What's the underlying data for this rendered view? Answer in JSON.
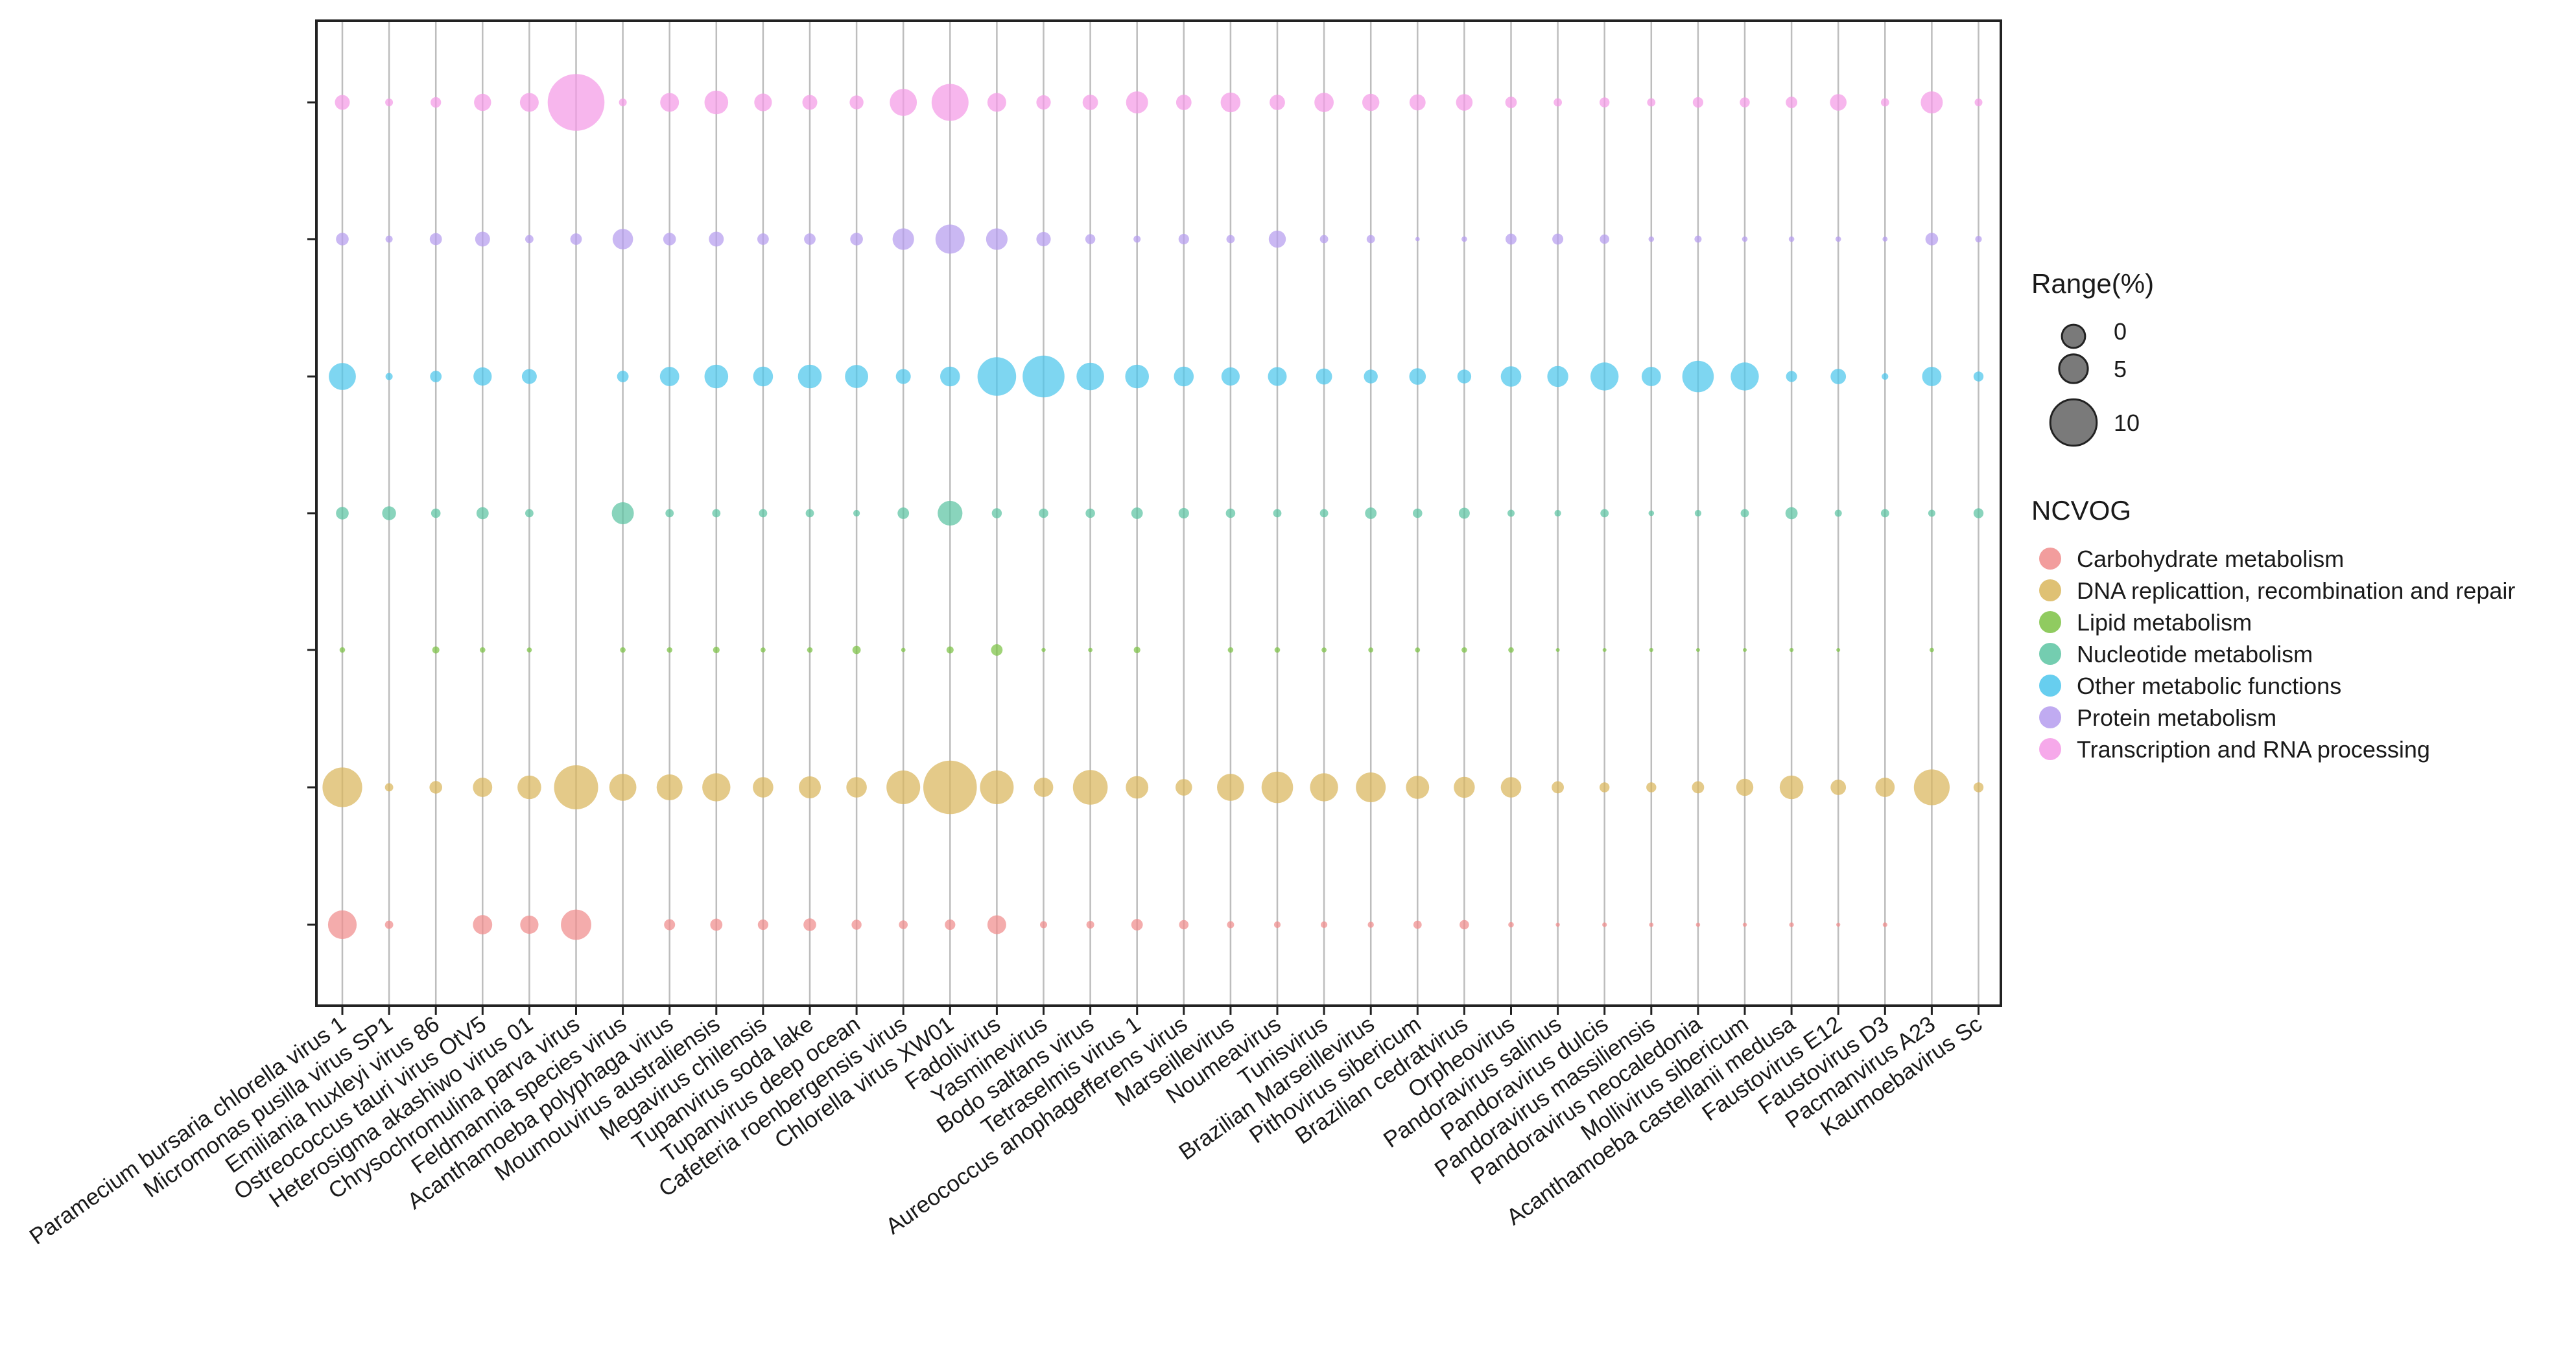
{
  "chart_data": {
    "type": "scatter",
    "x_categories": [
      "Paramecium bursaria chlorella virus 1",
      "Micromonas pusilla virus SP1",
      "Emiliania huxleyi virus 86",
      "Ostreococcus tauri virus OtV5",
      "Heterosigma akashiwo virus 01",
      "Chrysochromulina parva virus",
      "Feldmannia species virus",
      "Acanthamoeba polyphaga virus",
      "Moumouvirus australiensis",
      "Megavirus chilensis",
      "Tupanvirus soda lake",
      "Tupanvirus deep ocean",
      "Cafeteria roenbergensis virus",
      "Chlorella virus XW01",
      "Fadolivirus",
      "Yasminevirus",
      "Bodo saltans virus",
      "Tetraselmis virus 1",
      "Aureococcus anophagefferens virus",
      "Marseillevirus",
      "Noumeavirus",
      "Tunisvirus",
      "Brazilian Marseillevirus",
      "Pithovirus sibericum",
      "Brazilian cedratvirus",
      "Orpheovirus",
      "Pandoravirus salinus",
      "Pandoravirus dulcis",
      "Pandoravirus massiliensis",
      "Pandoravirus neocaledonia",
      "Mollivirus sibericum",
      "Acanthamoeba castellanii medusa",
      "Faustovirus E12",
      "Faustovirus D3",
      "Pacmanvirus A23",
      "Kaumoebavirus Sc"
    ],
    "y_categories": [
      "Carbohydrate metabolism",
      "DNA replicattion, recombination and repair",
      "Lipid metabolism",
      "Nucleotide metabolism",
      "Other metabolic functions",
      "Protein metabolism",
      "Transcription and RNA processing"
    ],
    "series": [
      {
        "name": "Carbohydrate metabolism",
        "color": "#F08C8C",
        "values": [
          4.5,
          0.8,
          null,
          2.8,
          2.6,
          4.8,
          null,
          1.3,
          1.5,
          1.2,
          1.6,
          1.1,
          0.9,
          1.2,
          2.7,
          0.6,
          0.7,
          1.4,
          1.0,
          0.6,
          0.5,
          0.5,
          0.4,
          0.8,
          1.0,
          0.3,
          0.04,
          0.15,
          0.1,
          0.06,
          0.04,
          0.15,
          0.03,
          0.15,
          null,
          null
        ]
      },
      {
        "name": "DNA replicattion, recombination and repair",
        "color": "#D9B65C",
        "values": [
          6.5,
          0.8,
          1.6,
          2.8,
          3.6,
          7.3,
          4.2,
          4.0,
          4.4,
          3.0,
          3.3,
          3.0,
          5.4,
          9.0,
          5.4,
          2.8,
          5.6,
          3.4,
          2.3,
          4.2,
          5.0,
          4.4,
          4.7,
          3.5,
          3.1,
          3.0,
          1.5,
          1.1,
          1.1,
          1.5,
          2.4,
          3.6,
          2.1,
          2.8,
          5.8,
          1.1
        ]
      },
      {
        "name": "Lipid metabolism",
        "color": "#7CC244",
        "values": [
          0.3,
          null,
          0.6,
          0.3,
          0.2,
          null,
          0.3,
          0.3,
          0.5,
          0.2,
          0.3,
          0.8,
          0.1,
          0.6,
          1.4,
          0.05,
          0.1,
          0.5,
          null,
          0.3,
          0.3,
          0.2,
          0.2,
          0.2,
          0.3,
          0.3,
          0.01,
          0.01,
          0.03,
          0.01,
          0.01,
          0.03,
          0.01,
          null,
          0.1,
          null
        ]
      },
      {
        "name": "Nucleotide metabolism",
        "color": "#5CC4A2",
        "values": [
          1.6,
          1.8,
          1.0,
          1.5,
          0.8,
          null,
          3.3,
          0.8,
          0.8,
          0.8,
          0.8,
          0.5,
          1.4,
          3.8,
          1.1,
          1.0,
          1.0,
          1.4,
          1.2,
          1.0,
          0.8,
          0.8,
          1.4,
          1.0,
          1.3,
          0.6,
          0.5,
          0.8,
          0.3,
          0.5,
          0.8,
          1.5,
          0.6,
          0.8,
          0.6,
          1.1
        ]
      },
      {
        "name": "Other metabolic functions",
        "color": "#4CC6EC",
        "values": [
          4.2,
          0.6,
          1.4,
          2.6,
          2.0,
          null,
          1.4,
          2.8,
          3.6,
          2.9,
          3.6,
          3.5,
          2.0,
          2.9,
          6.3,
          6.9,
          4.3,
          3.6,
          2.9,
          2.6,
          2.7,
          2.2,
          1.8,
          2.3,
          1.8,
          3.0,
          3.1,
          4.4,
          2.8,
          5.0,
          4.4,
          1.3,
          2.1,
          0.5,
          2.8,
          1.1
        ]
      },
      {
        "name": "Protein metabolism",
        "color": "#B59CEE",
        "values": [
          1.6,
          0.6,
          1.5,
          2.0,
          0.8,
          1.4,
          3.0,
          1.6,
          2.0,
          1.4,
          1.4,
          1.6,
          3.2,
          4.6,
          3.2,
          1.9,
          1.1,
          0.6,
          1.2,
          0.8,
          2.4,
          0.8,
          0.8,
          0.1,
          0.3,
          1.3,
          1.3,
          1.0,
          0.3,
          0.6,
          0.3,
          0.3,
          0.3,
          0.2,
          1.6,
          0.5
        ]
      },
      {
        "name": "Transcription and RNA processing",
        "color": "#F49AE6",
        "values": [
          2.0,
          0.7,
          1.2,
          2.4,
          2.7,
          9.6,
          0.7,
          2.7,
          3.6,
          2.5,
          2.0,
          1.8,
          4.2,
          6.0,
          2.7,
          1.9,
          2.1,
          3.3,
          2.1,
          2.9,
          2.1,
          2.8,
          2.4,
          2.2,
          2.3,
          1.4,
          0.8,
          1.1,
          0.8,
          1.2,
          1.1,
          1.4,
          2.3,
          0.8,
          3.3,
          0.7
        ]
      }
    ],
    "size_legend": {
      "title": "Range(%)",
      "values": [
        "0",
        "5",
        "10"
      ]
    },
    "color_legend_title": "NCVOG",
    "legend_position": "right",
    "xlabel": "",
    "ylabel": "",
    "grid": "vertical lines"
  }
}
